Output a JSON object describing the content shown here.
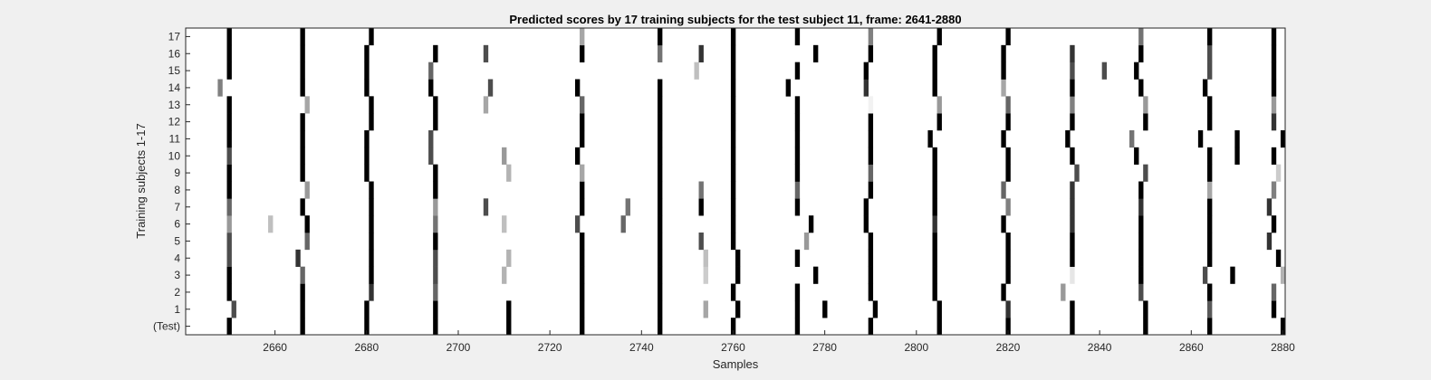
{
  "chart_data": {
    "type": "heatmap",
    "title": "Predicted scores by 17 training subjects for the test subject 11, frame: 2641-2880",
    "xlabel": "Samples",
    "ylabel": "Training subjects 1-17",
    "xlim": [
      2641,
      2880
    ],
    "x_ticks": [
      2660,
      2680,
      2700,
      2720,
      2740,
      2760,
      2780,
      2800,
      2820,
      2840,
      2860,
      2880
    ],
    "y_tick_labels": [
      "(Test)",
      "1",
      "2",
      "3",
      "4",
      "5",
      "6",
      "7",
      "8",
      "9",
      "10",
      "11",
      "12",
      "13",
      "14",
      "15",
      "16",
      "17"
    ],
    "colormap": "gray, white = 0, black = 1",
    "grid": false,
    "rows": [
      {
        "label": "(Test)",
        "marks": [
          [
            2650,
            1
          ],
          [
            2666,
            1
          ],
          [
            2680,
            1
          ],
          [
            2695,
            1
          ],
          [
            2711,
            1
          ],
          [
            2727,
            1
          ],
          [
            2744,
            1
          ],
          [
            2760,
            1
          ],
          [
            2774,
            1
          ],
          [
            2790,
            1
          ],
          [
            2805,
            1
          ],
          [
            2820,
            1
          ],
          [
            2834,
            1
          ],
          [
            2850,
            1
          ],
          [
            2864,
            1
          ],
          [
            2880,
            1
          ]
        ]
      },
      {
        "label": "1",
        "marks": [
          [
            2651,
            0.7
          ],
          [
            2666,
            1
          ],
          [
            2680,
            1
          ],
          [
            2695,
            1
          ],
          [
            2711,
            1
          ],
          [
            2727,
            1
          ],
          [
            2744,
            1
          ],
          [
            2754,
            0.35
          ],
          [
            2761,
            1
          ],
          [
            2774,
            1
          ],
          [
            2780,
            1
          ],
          [
            2791,
            1
          ],
          [
            2805,
            1
          ],
          [
            2820,
            0.8
          ],
          [
            2834,
            1
          ],
          [
            2850,
            1
          ],
          [
            2864,
            0.65
          ],
          [
            2878,
            1
          ]
        ]
      },
      {
        "label": "2",
        "marks": [
          [
            2650,
            1
          ],
          [
            2666,
            1
          ],
          [
            2681,
            0.8
          ],
          [
            2695,
            0.6
          ],
          [
            2727,
            1
          ],
          [
            2744,
            1
          ],
          [
            2760,
            1
          ],
          [
            2774,
            1
          ],
          [
            2790,
            1
          ],
          [
            2804,
            1
          ],
          [
            2819,
            1
          ],
          [
            2832,
            0.4
          ],
          [
            2849,
            0.7
          ],
          [
            2864,
            1
          ],
          [
            2878,
            0.6
          ]
        ]
      },
      {
        "label": "3",
        "marks": [
          [
            2650,
            1
          ],
          [
            2666,
            0.6
          ],
          [
            2681,
            1
          ],
          [
            2695,
            0.7
          ],
          [
            2710,
            0.3
          ],
          [
            2727,
            1
          ],
          [
            2744,
            1
          ],
          [
            2754,
            0.2
          ],
          [
            2761,
            1
          ],
          [
            2778,
            1
          ],
          [
            2790,
            1
          ],
          [
            2804,
            1
          ],
          [
            2820,
            1
          ],
          [
            2834,
            0.1
          ],
          [
            2849,
            1
          ],
          [
            2863,
            0.7
          ],
          [
            2869,
            1
          ],
          [
            2880,
            0.3
          ]
        ]
      },
      {
        "label": "4",
        "marks": [
          [
            2650,
            0.7
          ],
          [
            2665,
            0.8
          ],
          [
            2681,
            1
          ],
          [
            2695,
            0.7
          ],
          [
            2711,
            0.3
          ],
          [
            2727,
            1
          ],
          [
            2744,
            1
          ],
          [
            2754,
            0.25
          ],
          [
            2761,
            1
          ],
          [
            2774,
            1
          ],
          [
            2790,
            1
          ],
          [
            2804,
            1
          ],
          [
            2820,
            1
          ],
          [
            2834,
            1
          ],
          [
            2849,
            1
          ],
          [
            2864,
            1
          ],
          [
            2879,
            1
          ]
        ]
      },
      {
        "label": "5",
        "marks": [
          [
            2650,
            0.7
          ],
          [
            2667,
            0.6
          ],
          [
            2681,
            1
          ],
          [
            2695,
            1
          ],
          [
            2727,
            1
          ],
          [
            2744,
            1
          ],
          [
            2753,
            0.7
          ],
          [
            2760,
            1
          ],
          [
            2776,
            0.4
          ],
          [
            2790,
            1
          ],
          [
            2804,
            1
          ],
          [
            2820,
            1
          ],
          [
            2834,
            1
          ],
          [
            2849,
            1
          ],
          [
            2864,
            1
          ],
          [
            2877,
            0.8
          ]
        ]
      },
      {
        "label": "6",
        "marks": [
          [
            2650,
            0.4
          ],
          [
            2659,
            0.25
          ],
          [
            2667,
            1
          ],
          [
            2681,
            1
          ],
          [
            2695,
            0.55
          ],
          [
            2710,
            0.25
          ],
          [
            2726,
            0.7
          ],
          [
            2736,
            0.6
          ],
          [
            2744,
            1
          ],
          [
            2760,
            1
          ],
          [
            2777,
            1
          ],
          [
            2789,
            1
          ],
          [
            2804,
            0.8
          ],
          [
            2819,
            1
          ],
          [
            2834,
            0.8
          ],
          [
            2849,
            1
          ],
          [
            2864,
            1
          ],
          [
            2878,
            1
          ]
        ]
      },
      {
        "label": "7",
        "marks": [
          [
            2650,
            0.6
          ],
          [
            2666,
            1
          ],
          [
            2681,
            1
          ],
          [
            2695,
            0.4
          ],
          [
            2706,
            0.7
          ],
          [
            2727,
            1
          ],
          [
            2737,
            0.55
          ],
          [
            2744,
            1
          ],
          [
            2753,
            1
          ],
          [
            2760,
            1
          ],
          [
            2774,
            1
          ],
          [
            2789,
            1
          ],
          [
            2804,
            1
          ],
          [
            2820,
            0.5
          ],
          [
            2834,
            0.8
          ],
          [
            2849,
            0.8
          ],
          [
            2864,
            1
          ],
          [
            2877,
            0.8
          ]
        ]
      },
      {
        "label": "8",
        "marks": [
          [
            2650,
            1
          ],
          [
            2667,
            0.4
          ],
          [
            2681,
            1
          ],
          [
            2695,
            1
          ],
          [
            2727,
            1
          ],
          [
            2744,
            1
          ],
          [
            2753,
            0.55
          ],
          [
            2760,
            1
          ],
          [
            2774,
            0.6
          ],
          [
            2790,
            1
          ],
          [
            2804,
            1
          ],
          [
            2819,
            0.6
          ],
          [
            2834,
            0.8
          ],
          [
            2849,
            1
          ],
          [
            2864,
            0.35
          ],
          [
            2878,
            0.5
          ]
        ]
      },
      {
        "label": "9",
        "marks": [
          [
            2650,
            1
          ],
          [
            2666,
            1
          ],
          [
            2680,
            1
          ],
          [
            2695,
            1
          ],
          [
            2711,
            0.3
          ],
          [
            2727,
            0.35
          ],
          [
            2744,
            1
          ],
          [
            2760,
            1
          ],
          [
            2774,
            1
          ],
          [
            2790,
            0.6
          ],
          [
            2804,
            1
          ],
          [
            2820,
            1
          ],
          [
            2835,
            0.7
          ],
          [
            2850,
            0.7
          ],
          [
            2864,
            1
          ],
          [
            2879,
            0.2
          ]
        ]
      },
      {
        "label": "10",
        "marks": [
          [
            2650,
            0.7
          ],
          [
            2666,
            1
          ],
          [
            2680,
            1
          ],
          [
            2694,
            0.7
          ],
          [
            2710,
            0.4
          ],
          [
            2726,
            1
          ],
          [
            2744,
            1
          ],
          [
            2760,
            1
          ],
          [
            2774,
            1
          ],
          [
            2790,
            1
          ],
          [
            2804,
            1
          ],
          [
            2820,
            1
          ],
          [
            2834,
            1
          ],
          [
            2848,
            1
          ],
          [
            2864,
            1
          ],
          [
            2870,
            1
          ],
          [
            2878,
            1
          ]
        ]
      },
      {
        "label": "11",
        "marks": [
          [
            2650,
            1
          ],
          [
            2666,
            1
          ],
          [
            2680,
            1
          ],
          [
            2694,
            0.7
          ],
          [
            2727,
            1
          ],
          [
            2744,
            1
          ],
          [
            2760,
            1
          ],
          [
            2774,
            1
          ],
          [
            2790,
            1
          ],
          [
            2803,
            1
          ],
          [
            2819,
            1
          ],
          [
            2833,
            1
          ],
          [
            2847,
            0.55
          ],
          [
            2862,
            1
          ],
          [
            2870,
            1
          ],
          [
            2880,
            1
          ]
        ]
      },
      {
        "label": "12",
        "marks": [
          [
            2650,
            1
          ],
          [
            2666,
            1
          ],
          [
            2681,
            1
          ],
          [
            2695,
            1
          ],
          [
            2727,
            1
          ],
          [
            2744,
            1
          ],
          [
            2760,
            1
          ],
          [
            2774,
            1
          ],
          [
            2790,
            1
          ],
          [
            2805,
            1
          ],
          [
            2820,
            1
          ],
          [
            2834,
            1
          ],
          [
            2850,
            1
          ],
          [
            2864,
            1
          ],
          [
            2878,
            0.8
          ]
        ]
      },
      {
        "label": "13",
        "marks": [
          [
            2650,
            1
          ],
          [
            2667,
            0.35
          ],
          [
            2681,
            1
          ],
          [
            2695,
            1
          ],
          [
            2706,
            0.35
          ],
          [
            2727,
            0.6
          ],
          [
            2744,
            1
          ],
          [
            2760,
            1
          ],
          [
            2774,
            1
          ],
          [
            2790,
            0.05
          ],
          [
            2805,
            0.4
          ],
          [
            2820,
            0.6
          ],
          [
            2834,
            0.5
          ],
          [
            2850,
            0.4
          ],
          [
            2864,
            1
          ],
          [
            2878,
            0.4
          ]
        ]
      },
      {
        "label": "14",
        "marks": [
          [
            2648,
            0.5
          ],
          [
            2666,
            1
          ],
          [
            2680,
            1
          ],
          [
            2694,
            1
          ],
          [
            2707,
            0.7
          ],
          [
            2726,
            1
          ],
          [
            2744,
            1
          ],
          [
            2760,
            1
          ],
          [
            2772,
            1
          ],
          [
            2789,
            0.8
          ],
          [
            2804,
            1
          ],
          [
            2819,
            0.35
          ],
          [
            2834,
            1
          ],
          [
            2849,
            1
          ],
          [
            2863,
            1
          ],
          [
            2878,
            1
          ]
        ]
      },
      {
        "label": "15",
        "marks": [
          [
            2650,
            1
          ],
          [
            2666,
            1
          ],
          [
            2680,
            1
          ],
          [
            2694,
            0.6
          ],
          [
            2752,
            0.25
          ],
          [
            2760,
            1
          ],
          [
            2774,
            1
          ],
          [
            2789,
            1
          ],
          [
            2804,
            1
          ],
          [
            2819,
            1
          ],
          [
            2834,
            0.7
          ],
          [
            2841,
            0.7
          ],
          [
            2848,
            1
          ],
          [
            2864,
            0.7
          ],
          [
            2878,
            1
          ]
        ]
      },
      {
        "label": "16",
        "marks": [
          [
            2650,
            1
          ],
          [
            2666,
            1
          ],
          [
            2680,
            1
          ],
          [
            2695,
            1
          ],
          [
            2706,
            0.7
          ],
          [
            2727,
            1
          ],
          [
            2744,
            0.55
          ],
          [
            2753,
            0.8
          ],
          [
            2760,
            1
          ],
          [
            2778,
            1
          ],
          [
            2790,
            1
          ],
          [
            2804,
            1
          ],
          [
            2819,
            1
          ],
          [
            2834,
            0.8
          ],
          [
            2849,
            1
          ],
          [
            2864,
            0.7
          ],
          [
            2878,
            1
          ]
        ]
      },
      {
        "label": "17",
        "marks": [
          [
            2650,
            1
          ],
          [
            2666,
            1
          ],
          [
            2681,
            1
          ],
          [
            2727,
            0.35
          ],
          [
            2744,
            1
          ],
          [
            2760,
            1
          ],
          [
            2774,
            1
          ],
          [
            2790,
            0.5
          ],
          [
            2805,
            1
          ],
          [
            2820,
            1
          ],
          [
            2849,
            0.55
          ],
          [
            2864,
            1
          ],
          [
            2878,
            1
          ]
        ]
      }
    ]
  }
}
